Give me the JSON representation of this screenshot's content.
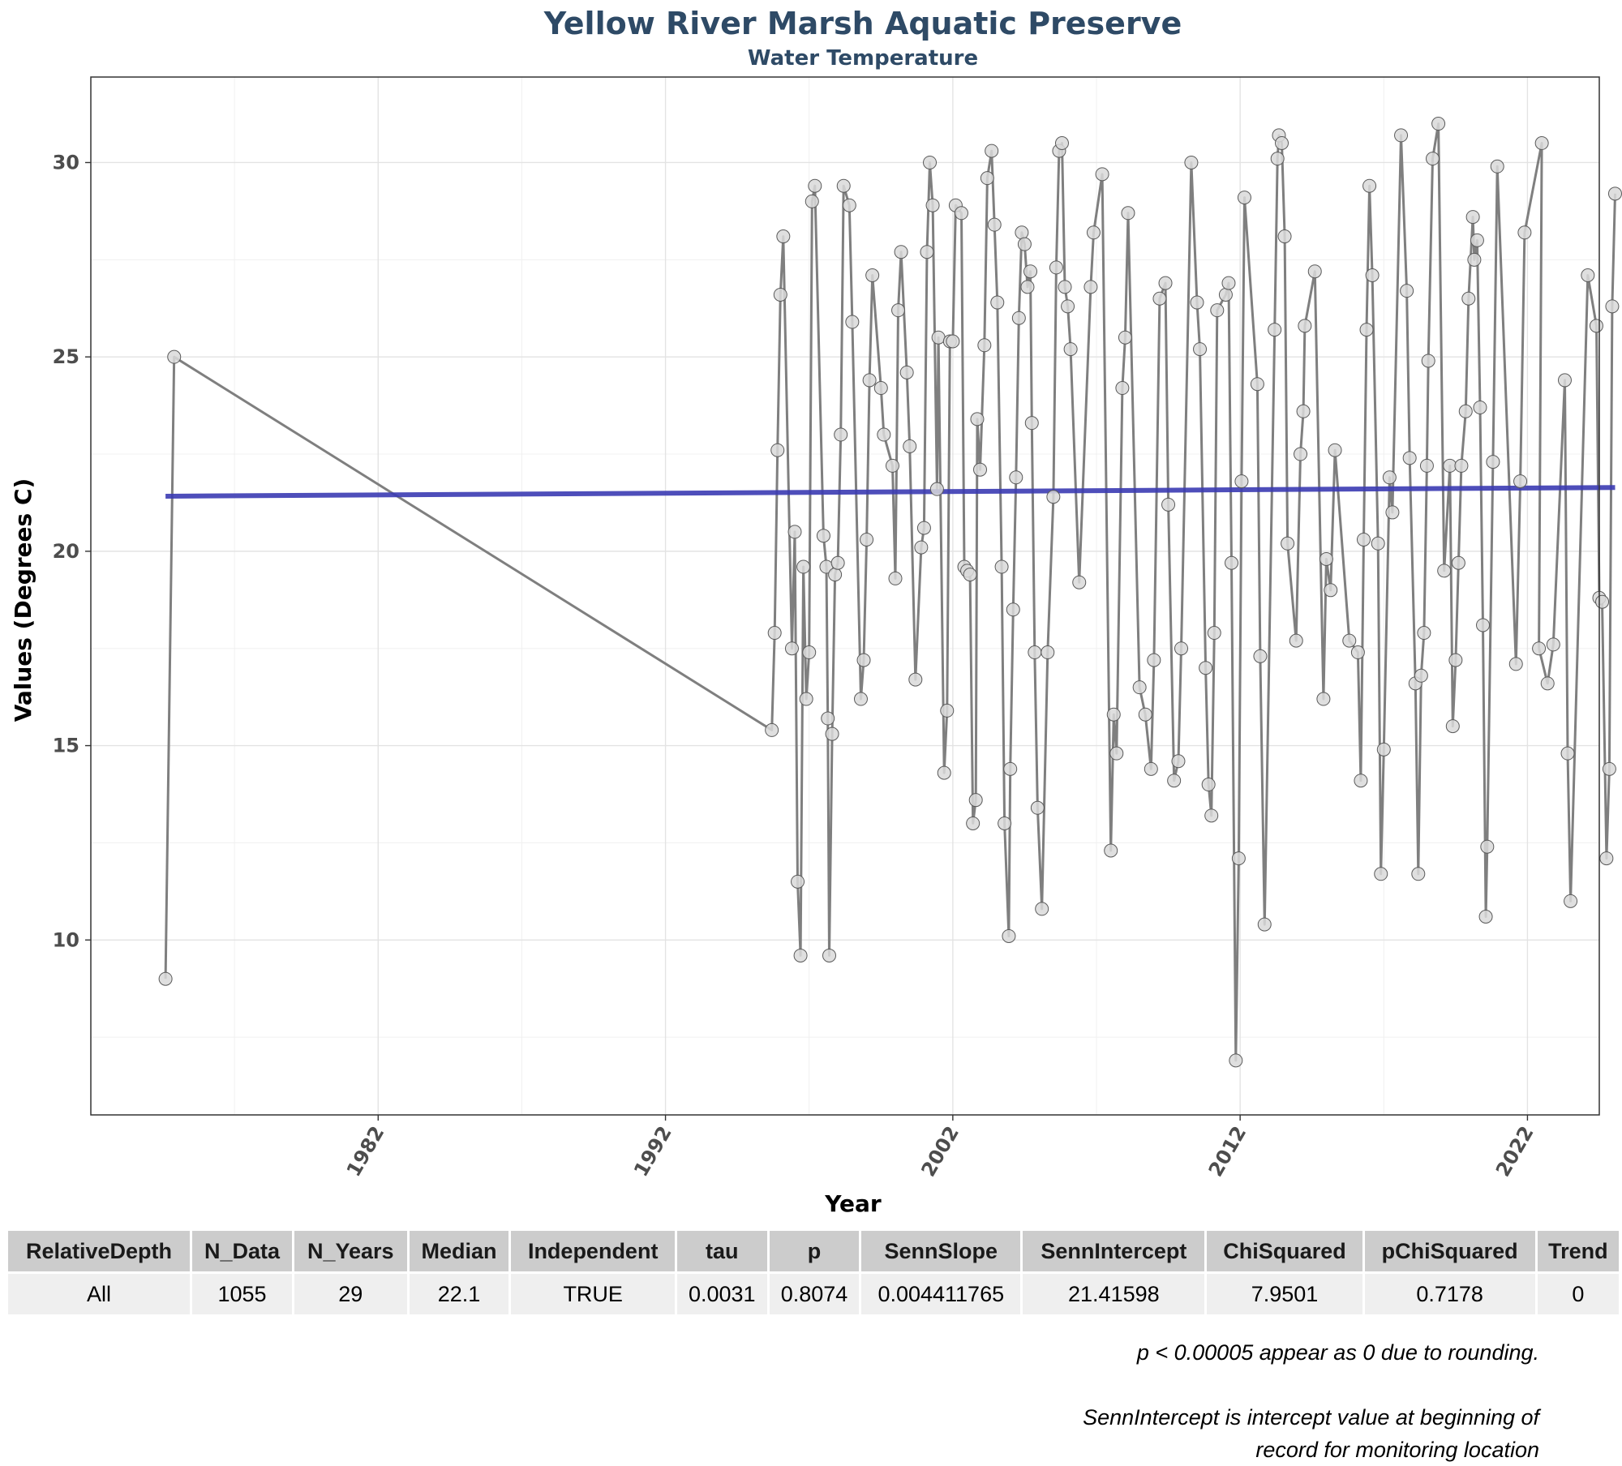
{
  "chart_data": {
    "type": "line",
    "title": "Yellow River Marsh Aquatic Preserve",
    "subtitle": "Water Temperature",
    "xlabel": "Year",
    "ylabel": "Values (Degrees C)",
    "xlim": [
      1972,
      2024.5
    ],
    "ylim": [
      5.5,
      32.2
    ],
    "x_ticks": [
      "1982",
      "1992",
      "2002",
      "2012",
      "2022"
    ],
    "y_ticks": [
      "10",
      "15",
      "20",
      "25",
      "30"
    ],
    "grid": true,
    "legend": "none",
    "colors": {
      "series_line": "#7f7f7f",
      "point_fill": "#d9d9d9",
      "point_edge": "#5a5a5a",
      "trend_line": "#3b3bb3"
    },
    "series": [
      {
        "points": [
          [
            1974.6,
            9.0
          ],
          [
            1974.9,
            25.0
          ],
          [
            1995.7,
            15.4
          ],
          [
            1995.8,
            17.9
          ],
          [
            1995.9,
            22.6
          ],
          [
            1996.0,
            26.6
          ],
          [
            1996.1,
            28.1
          ],
          [
            1996.4,
            17.5
          ],
          [
            1996.5,
            20.5
          ],
          [
            1996.6,
            11.5
          ],
          [
            1996.7,
            9.6
          ],
          [
            1996.8,
            19.6
          ],
          [
            1996.9,
            16.2
          ],
          [
            1997.0,
            17.4
          ],
          [
            1997.1,
            29.0
          ],
          [
            1997.2,
            29.4
          ],
          [
            1997.5,
            20.4
          ],
          [
            1997.6,
            19.6
          ],
          [
            1997.65,
            15.7
          ],
          [
            1997.7,
            9.6
          ],
          [
            1997.8,
            15.3
          ],
          [
            1997.9,
            19.4
          ],
          [
            1998.0,
            19.7
          ],
          [
            1998.1,
            23.0
          ],
          [
            1998.2,
            29.4
          ],
          [
            1998.4,
            28.9
          ],
          [
            1998.5,
            25.9
          ],
          [
            1998.8,
            16.2
          ],
          [
            1998.9,
            17.2
          ],
          [
            1999.0,
            20.3
          ],
          [
            1999.1,
            24.4
          ],
          [
            1999.2,
            27.1
          ],
          [
            1999.5,
            24.2
          ],
          [
            1999.6,
            23.0
          ],
          [
            1999.9,
            22.2
          ],
          [
            2000.0,
            19.3
          ],
          [
            2000.1,
            26.2
          ],
          [
            2000.2,
            27.7
          ],
          [
            2000.4,
            24.6
          ],
          [
            2000.5,
            22.7
          ],
          [
            2000.7,
            16.7
          ],
          [
            2000.9,
            20.1
          ],
          [
            2001.0,
            20.6
          ],
          [
            2001.1,
            27.7
          ],
          [
            2001.2,
            30.0
          ],
          [
            2001.3,
            28.9
          ],
          [
            2001.45,
            21.6
          ],
          [
            2001.5,
            25.5
          ],
          [
            2001.7,
            14.3
          ],
          [
            2001.8,
            15.9
          ],
          [
            2001.9,
            25.4
          ],
          [
            2002.0,
            25.4
          ],
          [
            2002.1,
            28.9
          ],
          [
            2002.3,
            28.7
          ],
          [
            2002.4,
            19.6
          ],
          [
            2002.5,
            19.5
          ],
          [
            2002.6,
            19.4
          ],
          [
            2002.7,
            13.0
          ],
          [
            2002.8,
            13.6
          ],
          [
            2002.85,
            23.4
          ],
          [
            2002.95,
            22.1
          ],
          [
            2003.1,
            25.3
          ],
          [
            2003.2,
            29.6
          ],
          [
            2003.35,
            30.3
          ],
          [
            2003.45,
            28.4
          ],
          [
            2003.55,
            26.4
          ],
          [
            2003.7,
            19.6
          ],
          [
            2003.8,
            13.0
          ],
          [
            2003.95,
            10.1
          ],
          [
            2004.0,
            14.4
          ],
          [
            2004.1,
            18.5
          ],
          [
            2004.2,
            21.9
          ],
          [
            2004.3,
            26.0
          ],
          [
            2004.4,
            28.2
          ],
          [
            2004.5,
            27.9
          ],
          [
            2004.6,
            26.8
          ],
          [
            2004.7,
            27.2
          ],
          [
            2004.75,
            23.3
          ],
          [
            2004.85,
            17.4
          ],
          [
            2004.95,
            13.4
          ],
          [
            2005.1,
            10.8
          ],
          [
            2005.3,
            17.4
          ],
          [
            2005.5,
            21.4
          ],
          [
            2005.6,
            27.3
          ],
          [
            2005.7,
            30.3
          ],
          [
            2005.8,
            30.5
          ],
          [
            2005.9,
            26.8
          ],
          [
            2006.0,
            26.3
          ],
          [
            2006.1,
            25.2
          ],
          [
            2006.4,
            19.2
          ],
          [
            2006.8,
            26.8
          ],
          [
            2006.9,
            28.2
          ],
          [
            2007.2,
            29.7
          ],
          [
            2007.5,
            12.3
          ],
          [
            2007.6,
            15.8
          ],
          [
            2007.7,
            14.8
          ],
          [
            2007.9,
            24.2
          ],
          [
            2008.0,
            25.5
          ],
          [
            2008.1,
            28.7
          ],
          [
            2008.5,
            16.5
          ],
          [
            2008.7,
            15.8
          ],
          [
            2008.9,
            14.4
          ],
          [
            2009.0,
            17.2
          ],
          [
            2009.2,
            26.5
          ],
          [
            2009.4,
            26.9
          ],
          [
            2009.5,
            21.2
          ],
          [
            2009.7,
            14.1
          ],
          [
            2009.85,
            14.6
          ],
          [
            2009.95,
            17.5
          ],
          [
            2010.3,
            30.0
          ],
          [
            2010.5,
            26.4
          ],
          [
            2010.6,
            25.2
          ],
          [
            2010.8,
            17.0
          ],
          [
            2010.9,
            14.0
          ],
          [
            2011.0,
            13.2
          ],
          [
            2011.1,
            17.9
          ],
          [
            2011.2,
            26.2
          ],
          [
            2011.5,
            26.6
          ],
          [
            2011.6,
            26.9
          ],
          [
            2011.7,
            19.7
          ],
          [
            2011.85,
            6.9
          ],
          [
            2011.95,
            12.1
          ],
          [
            2012.05,
            21.8
          ],
          [
            2012.15,
            29.1
          ],
          [
            2012.6,
            24.3
          ],
          [
            2012.7,
            17.3
          ],
          [
            2012.85,
            10.4
          ],
          [
            2013.2,
            25.7
          ],
          [
            2013.3,
            30.1
          ],
          [
            2013.35,
            30.7
          ],
          [
            2013.45,
            30.5
          ],
          [
            2013.55,
            28.1
          ],
          [
            2013.65,
            20.2
          ],
          [
            2013.95,
            17.7
          ],
          [
            2014.1,
            22.5
          ],
          [
            2014.2,
            23.6
          ],
          [
            2014.25,
            25.8
          ],
          [
            2014.6,
            27.2
          ],
          [
            2014.9,
            16.2
          ],
          [
            2015.0,
            19.8
          ],
          [
            2015.15,
            19.0
          ],
          [
            2015.3,
            22.6
          ],
          [
            2015.8,
            17.7
          ],
          [
            2016.1,
            17.4
          ],
          [
            2016.2,
            14.1
          ],
          [
            2016.3,
            20.3
          ],
          [
            2016.4,
            25.7
          ],
          [
            2016.5,
            29.4
          ],
          [
            2016.6,
            27.1
          ],
          [
            2016.8,
            20.2
          ],
          [
            2016.9,
            11.7
          ],
          [
            2017.0,
            14.9
          ],
          [
            2017.2,
            21.9
          ],
          [
            2017.3,
            21.0
          ],
          [
            2017.6,
            30.7
          ],
          [
            2017.8,
            26.7
          ],
          [
            2017.9,
            22.4
          ],
          [
            2018.1,
            16.6
          ],
          [
            2018.2,
            11.7
          ],
          [
            2018.3,
            16.8
          ],
          [
            2018.4,
            17.9
          ],
          [
            2018.5,
            22.2
          ],
          [
            2018.55,
            24.9
          ],
          [
            2018.7,
            30.1
          ],
          [
            2018.9,
            31.0
          ],
          [
            2019.1,
            19.5
          ],
          [
            2019.3,
            22.2
          ],
          [
            2019.4,
            15.5
          ],
          [
            2019.5,
            17.2
          ],
          [
            2019.6,
            19.7
          ],
          [
            2019.7,
            22.2
          ],
          [
            2019.85,
            23.6
          ],
          [
            2019.95,
            26.5
          ],
          [
            2020.1,
            28.6
          ],
          [
            2020.15,
            27.5
          ],
          [
            2020.25,
            28.0
          ],
          [
            2020.35,
            23.7
          ],
          [
            2020.45,
            18.1
          ],
          [
            2020.55,
            10.6
          ],
          [
            2020.6,
            12.4
          ],
          [
            2020.8,
            22.3
          ],
          [
            2020.95,
            29.9
          ],
          [
            2021.6,
            17.1
          ],
          [
            2021.75,
            21.8
          ],
          [
            2021.9,
            28.2
          ],
          [
            2022.5,
            30.5
          ],
          [
            2022.4,
            17.5
          ],
          [
            2022.7,
            16.6
          ],
          [
            2022.9,
            17.6
          ],
          [
            2023.3,
            24.4
          ],
          [
            2023.4,
            14.8
          ],
          [
            2023.5,
            11.0
          ],
          [
            2024.1,
            27.1
          ],
          [
            2024.4,
            25.8
          ],
          [
            2024.5,
            18.8
          ],
          [
            2024.6,
            18.7
          ],
          [
            2024.75,
            12.1
          ],
          [
            2024.85,
            14.4
          ],
          [
            2024.95,
            26.3
          ],
          [
            2025.05,
            29.2
          ]
        ]
      },
      {
        "role": "trend",
        "points": [
          [
            1974.6,
            21.41598
          ],
          [
            2025.05,
            21.64
          ]
        ]
      }
    ]
  },
  "table": {
    "headers": [
      "RelativeDepth",
      "N_Data",
      "N_Years",
      "Median",
      "Independent",
      "tau",
      "p",
      "SennSlope",
      "SennIntercept",
      "ChiSquared",
      "pChiSquared",
      "Trend"
    ],
    "rows": [
      [
        "All",
        "1055",
        "29",
        "22.1",
        "TRUE",
        "0.0031",
        "0.8074",
        "0.004411765",
        "21.41598",
        "7.9501",
        "0.7178",
        "0"
      ]
    ]
  },
  "notes": {
    "rounding": "p < 0.00005 appear as 0 due to rounding.",
    "intercept_line1": "SennIntercept is intercept value at beginning of",
    "intercept_line2": "record for monitoring location"
  }
}
